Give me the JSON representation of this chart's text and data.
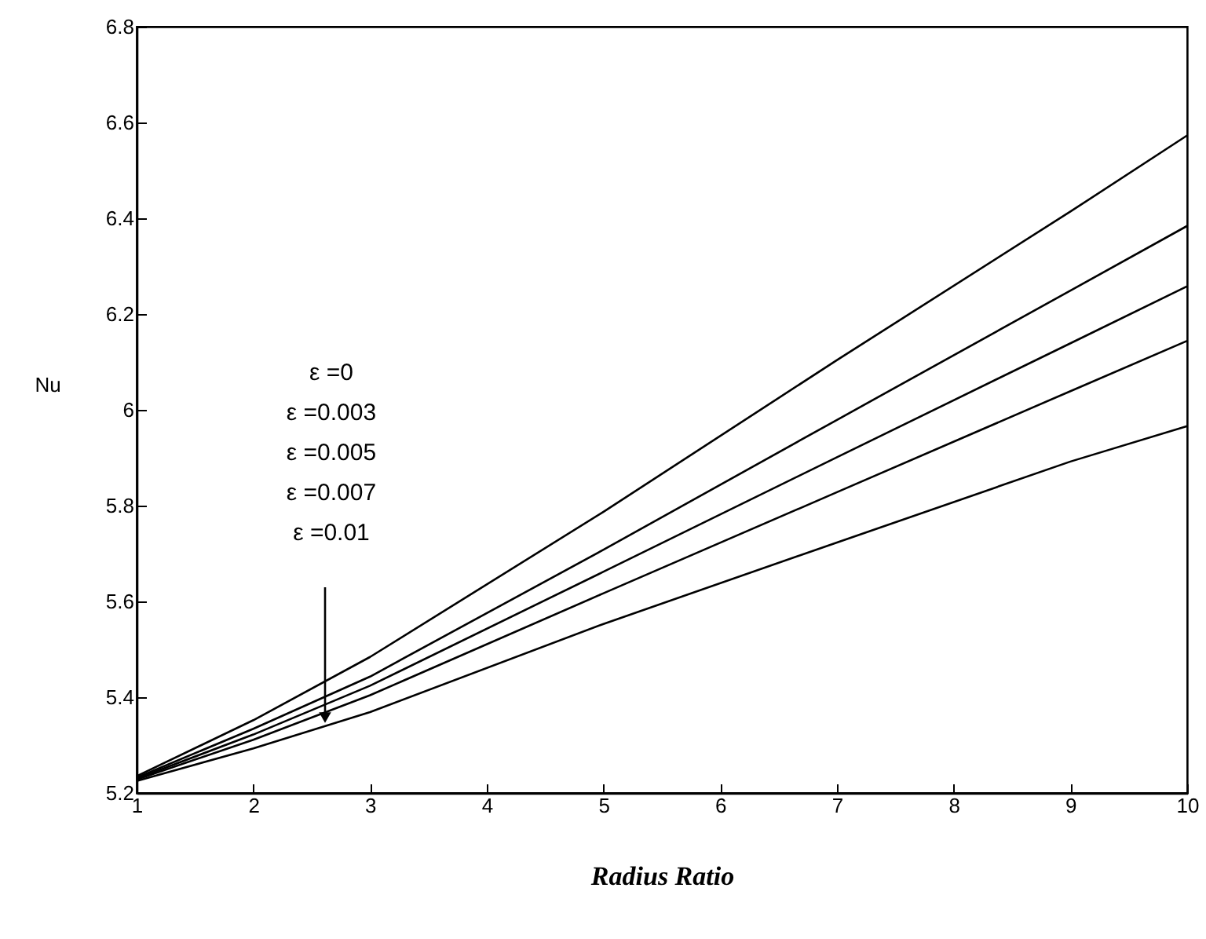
{
  "chart_data": {
    "type": "line",
    "xlabel": "Radius Ratio",
    "ylabel": "Nu",
    "annotations": [
      "ε =0",
      "ε =0.003",
      "ε =0.005",
      "ε =0.007",
      "ε =0.01"
    ],
    "x": [
      1,
      2,
      3,
      5,
      7,
      9,
      10
    ],
    "series": [
      {
        "color": "#000000",
        "values": [
          5.235,
          5.352,
          5.484,
          5.787,
          6.104,
          6.414,
          6.573
        ]
      },
      {
        "color": "#000000",
        "values": [
          5.232,
          5.334,
          5.443,
          5.708,
          5.979,
          6.249,
          6.384
        ]
      },
      {
        "color": "#000000",
        "values": [
          5.23,
          5.322,
          5.424,
          5.662,
          5.901,
          6.139,
          6.258
        ]
      },
      {
        "color": "#000000",
        "values": [
          5.228,
          5.311,
          5.404,
          5.617,
          5.828,
          6.039,
          6.144
        ]
      },
      {
        "color": "#000000",
        "values": [
          5.225,
          5.293,
          5.369,
          5.553,
          5.723,
          5.892,
          5.966
        ]
      }
    ],
    "xlim": [
      1,
      10
    ],
    "xticks": [
      1,
      2,
      3,
      4,
      5,
      6,
      7,
      8,
      9,
      10
    ],
    "ylim": [
      5.2,
      6.8
    ],
    "yticks": [
      5.2,
      5.4,
      5.6,
      5.8,
      6,
      6.2,
      6.4,
      6.6,
      6.8
    ],
    "grid": false,
    "marker": "none",
    "line_style": "solid"
  }
}
